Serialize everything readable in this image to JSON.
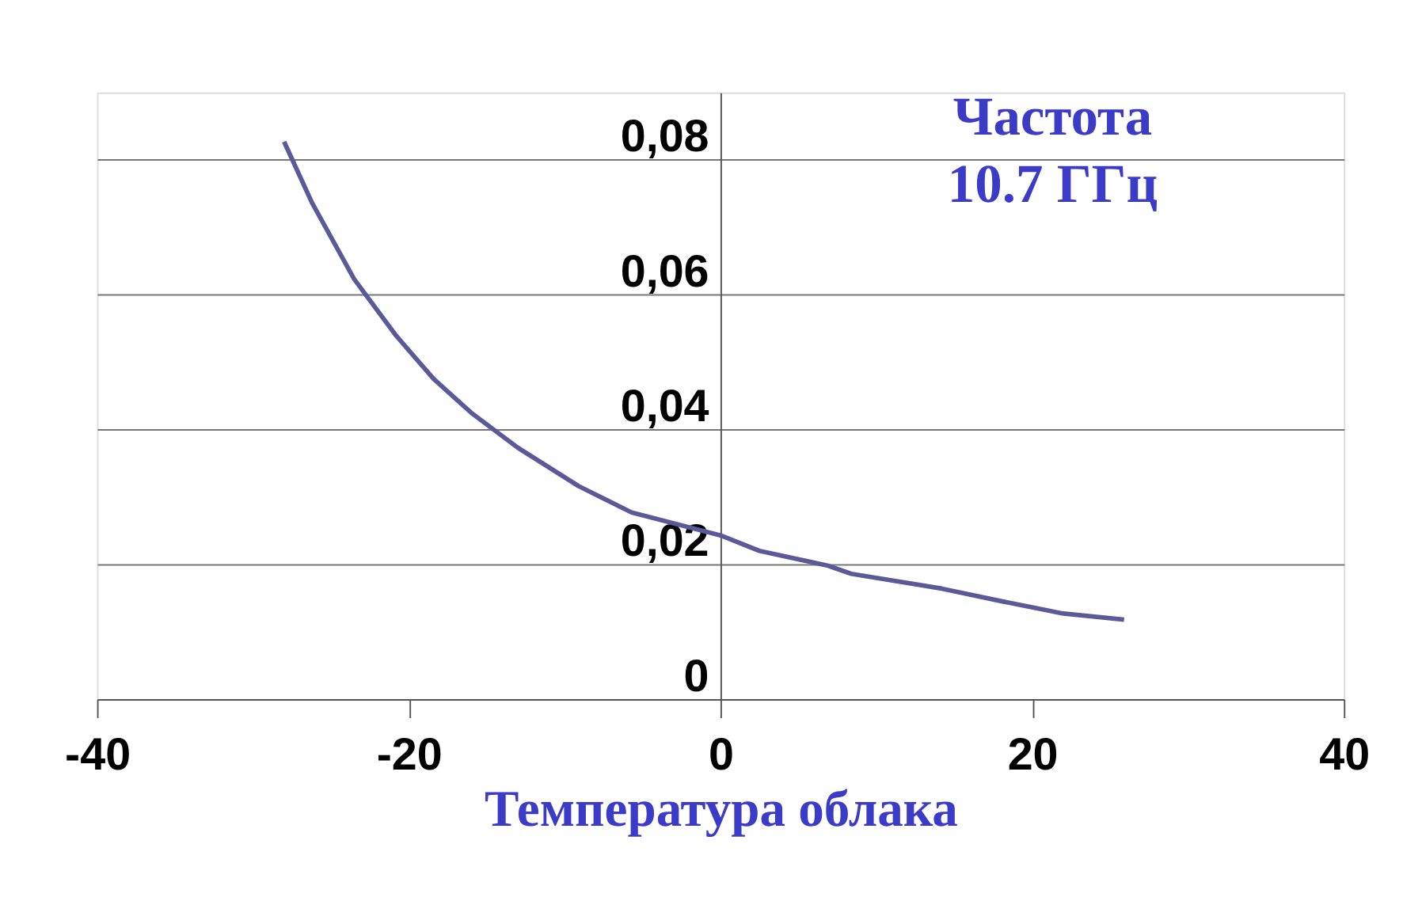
{
  "chart_data": {
    "type": "line",
    "xlabel": "Температура облака",
    "annotations": [
      "Частота\n10.7 ГГц"
    ],
    "x": [
      -28,
      -26.2,
      -23.5,
      -20.8,
      -18.4,
      -16,
      -13,
      -9.1,
      -5.7,
      0,
      2.5,
      6.9,
      8.4,
      14.2,
      18.1,
      22,
      25.9
    ],
    "series": [
      {
        "color": "#5a5a98",
        "values": [
          0.0827,
          0.0736,
          0.0623,
          0.0539,
          0.0475,
          0.0425,
          0.0373,
          0.0316,
          0.0277,
          0.0243,
          0.022,
          0.0198,
          0.0186,
          0.0164,
          0.0145,
          0.0127,
          0.0118
        ]
      }
    ],
    "xlim": [
      -40,
      40
    ],
    "xticks": [
      -40,
      -20,
      0,
      20,
      40
    ],
    "ylim": [
      0,
      0.09
    ],
    "yticks": [
      0,
      {
        "value": 0.02,
        "label": "0,02"
      },
      {
        "value": 0.04,
        "label": "0,04"
      },
      {
        "value": 0.06,
        "label": "0,06"
      },
      {
        "value": 0.08,
        "label": "0,08"
      }
    ],
    "grid": "y",
    "marker": "none",
    "line_style": "solid"
  }
}
